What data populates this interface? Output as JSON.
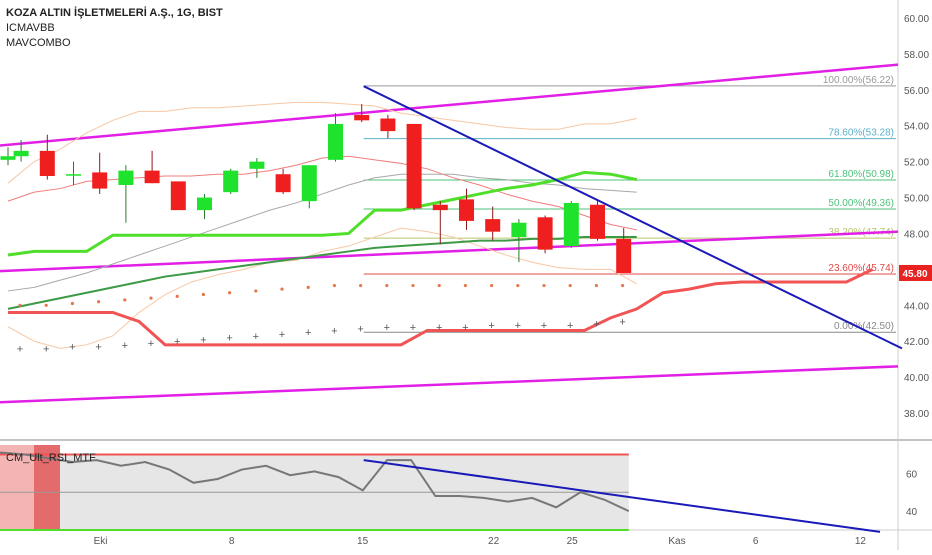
{
  "header": {
    "title": "KOZA ALTIN İŞLETMELERİ A.Ş., 1G, BIST",
    "indicators": [
      "ICMAVBB",
      "MAVCOMBO"
    ]
  },
  "chart_data": {
    "type": "candlestick",
    "price_axis": {
      "min": 36.5,
      "max": 61.0,
      "ticks": [
        "60.00",
        "58.00",
        "56.00",
        "54.00",
        "52.00",
        "50.00",
        "48.00",
        "46.00",
        "44.00",
        "42.00",
        "40.00",
        "38.00"
      ],
      "last_price": "45.80"
    },
    "x_axis": {
      "tick_labels": [
        {
          "label": "Eki",
          "idx": 3
        },
        {
          "label": "8",
          "idx": 8
        },
        {
          "label": "15",
          "idx": 13
        },
        {
          "label": "22",
          "idx": 18
        },
        {
          "label": "25",
          "idx": 21
        },
        {
          "label": "Kas",
          "idx": 25
        },
        {
          "label": "6",
          "idx": 28
        },
        {
          "label": "12",
          "idx": 32
        }
      ]
    },
    "candles": [
      {
        "i": 0,
        "o": 52.1,
        "h": 52.8,
        "l": 51.8,
        "c": 52.3
      },
      {
        "i": 0.5,
        "o": 52.3,
        "h": 53.2,
        "l": 52.0,
        "c": 52.6
      },
      {
        "i": 1.5,
        "o": 52.6,
        "h": 53.5,
        "l": 51.0,
        "c": 51.2
      },
      {
        "i": 2.5,
        "o": 51.3,
        "h": 52.0,
        "l": 50.7,
        "c": 51.3
      },
      {
        "i": 3.5,
        "o": 51.4,
        "h": 52.5,
        "l": 50.2,
        "c": 50.5
      },
      {
        "i": 4.5,
        "o": 50.7,
        "h": 51.8,
        "l": 48.6,
        "c": 51.5
      },
      {
        "i": 5.5,
        "o": 51.5,
        "h": 52.6,
        "l": 50.8,
        "c": 50.8
      },
      {
        "i": 6.5,
        "o": 50.9,
        "h": 50.9,
        "l": 49.3,
        "c": 49.3
      },
      {
        "i": 7.5,
        "o": 49.3,
        "h": 50.2,
        "l": 48.8,
        "c": 50.0
      },
      {
        "i": 8.5,
        "o": 50.3,
        "h": 51.6,
        "l": 50.2,
        "c": 51.5
      },
      {
        "i": 9.5,
        "o": 51.6,
        "h": 52.2,
        "l": 51.1,
        "c": 52.0
      },
      {
        "i": 10.5,
        "o": 51.3,
        "h": 51.6,
        "l": 50.2,
        "c": 50.3
      },
      {
        "i": 11.5,
        "o": 49.8,
        "h": 51.8,
        "l": 49.4,
        "c": 51.8
      },
      {
        "i": 12.5,
        "o": 52.1,
        "h": 54.7,
        "l": 52.0,
        "c": 54.1
      },
      {
        "i": 13.5,
        "o": 54.6,
        "h": 55.2,
        "l": 54.2,
        "c": 54.3
      },
      {
        "i": 14.5,
        "o": 54.4,
        "h": 54.6,
        "l": 53.3,
        "c": 53.7
      },
      {
        "i": 15.5,
        "o": 54.1,
        "h": 54.1,
        "l": 49.3,
        "c": 49.4
      },
      {
        "i": 16.5,
        "o": 49.6,
        "h": 49.8,
        "l": 47.4,
        "c": 49.3
      },
      {
        "i": 17.5,
        "o": 49.9,
        "h": 50.5,
        "l": 48.2,
        "c": 48.7
      },
      {
        "i": 18.5,
        "o": 48.8,
        "h": 49.5,
        "l": 47.6,
        "c": 48.1
      },
      {
        "i": 19.5,
        "o": 47.8,
        "h": 48.8,
        "l": 46.4,
        "c": 48.6
      },
      {
        "i": 20.5,
        "o": 48.9,
        "h": 49.0,
        "l": 46.9,
        "c": 47.1
      },
      {
        "i": 21.5,
        "o": 47.3,
        "h": 49.8,
        "l": 47.2,
        "c": 49.7
      },
      {
        "i": 22.5,
        "o": 49.6,
        "h": 49.8,
        "l": 47.6,
        "c": 47.7
      },
      {
        "i": 23.5,
        "o": 47.7,
        "h": 48.3,
        "l": 45.8,
        "c": 45.8
      }
    ],
    "fibonacci": [
      {
        "level": "100.00%(56.22)",
        "price": 56.22,
        "color": "#999999"
      },
      {
        "level": "78.60%(53.28)",
        "price": 53.28,
        "color": "#5bb0c8"
      },
      {
        "level": "61.80%(50.98)",
        "price": 50.98,
        "color": "#4cc27a"
      },
      {
        "level": "50.00%(49.36)",
        "price": 49.36,
        "color": "#4cc27a"
      },
      {
        "level": "38.20%(47.74)",
        "price": 47.74,
        "color": "#b9c46a"
      },
      {
        "level": "23.60%(45.74)",
        "price": 45.74,
        "color": "#e04848"
      },
      {
        "level": "0.00%(42.50)",
        "price": 42.5,
        "color": "#888888"
      }
    ],
    "rsi_panel": {
      "label": "CM_Ult_RSI_MTF",
      "min": 30,
      "max": 75,
      "ticks": [
        "60",
        "40"
      ],
      "overbought": 70,
      "oversold": 30,
      "midline": 50,
      "rsi_values": [
        71,
        70,
        68,
        66,
        67,
        64,
        66,
        62,
        55,
        57,
        62,
        64,
        59,
        61,
        58,
        51,
        67,
        67,
        48,
        48,
        47,
        45,
        47,
        42,
        50,
        46,
        40
      ],
      "trendline_start": 67,
      "trendline_end": 29
    },
    "colors": {
      "up": "#1ee22b",
      "down": "#f01f1f",
      "channel": "#e21fe6",
      "trendline": "#1a1ab8",
      "ma_green_bright": "#4fdf2b",
      "ma_green_dark": "#3c9a46",
      "bb_band": "#f7c8a4",
      "bb_mid": "#f07c7c",
      "ma_grey": "#a8a8a8",
      "red_stop": "#f05454",
      "last_price_bg": "#e82121",
      "rsi_line": "#777777",
      "rsi_ob": "#f05454",
      "rsi_os": "#4fdf2b"
    }
  }
}
